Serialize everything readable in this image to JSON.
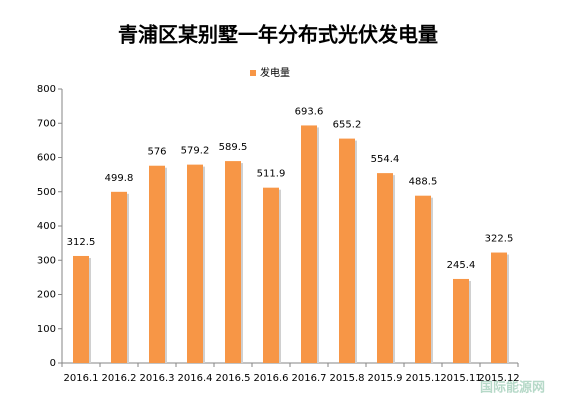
{
  "chart_data": {
    "type": "bar",
    "title": "青浦区某别墅一年分布式光伏发电量",
    "categories": [
      "2016.1",
      "2016.2",
      "2016.3",
      "2016.4",
      "2016.5",
      "2016.6",
      "2016.7",
      "2015.8",
      "2015.9",
      "2015.1",
      "2015.11",
      "2015.12"
    ],
    "series": [
      {
        "name": "发电量",
        "color": "#f79646",
        "values": [
          312.5,
          499.8,
          576,
          579.2,
          589.5,
          511.9,
          693.6,
          655.2,
          554.4,
          488.5,
          245.4,
          322.5
        ]
      }
    ],
    "ylim": [
      0,
      800
    ],
    "yticks": [
      0,
      100,
      200,
      300,
      400,
      500,
      600,
      700,
      800
    ],
    "grid": false,
    "legend": "top"
  },
  "watermark": "国际能源网"
}
